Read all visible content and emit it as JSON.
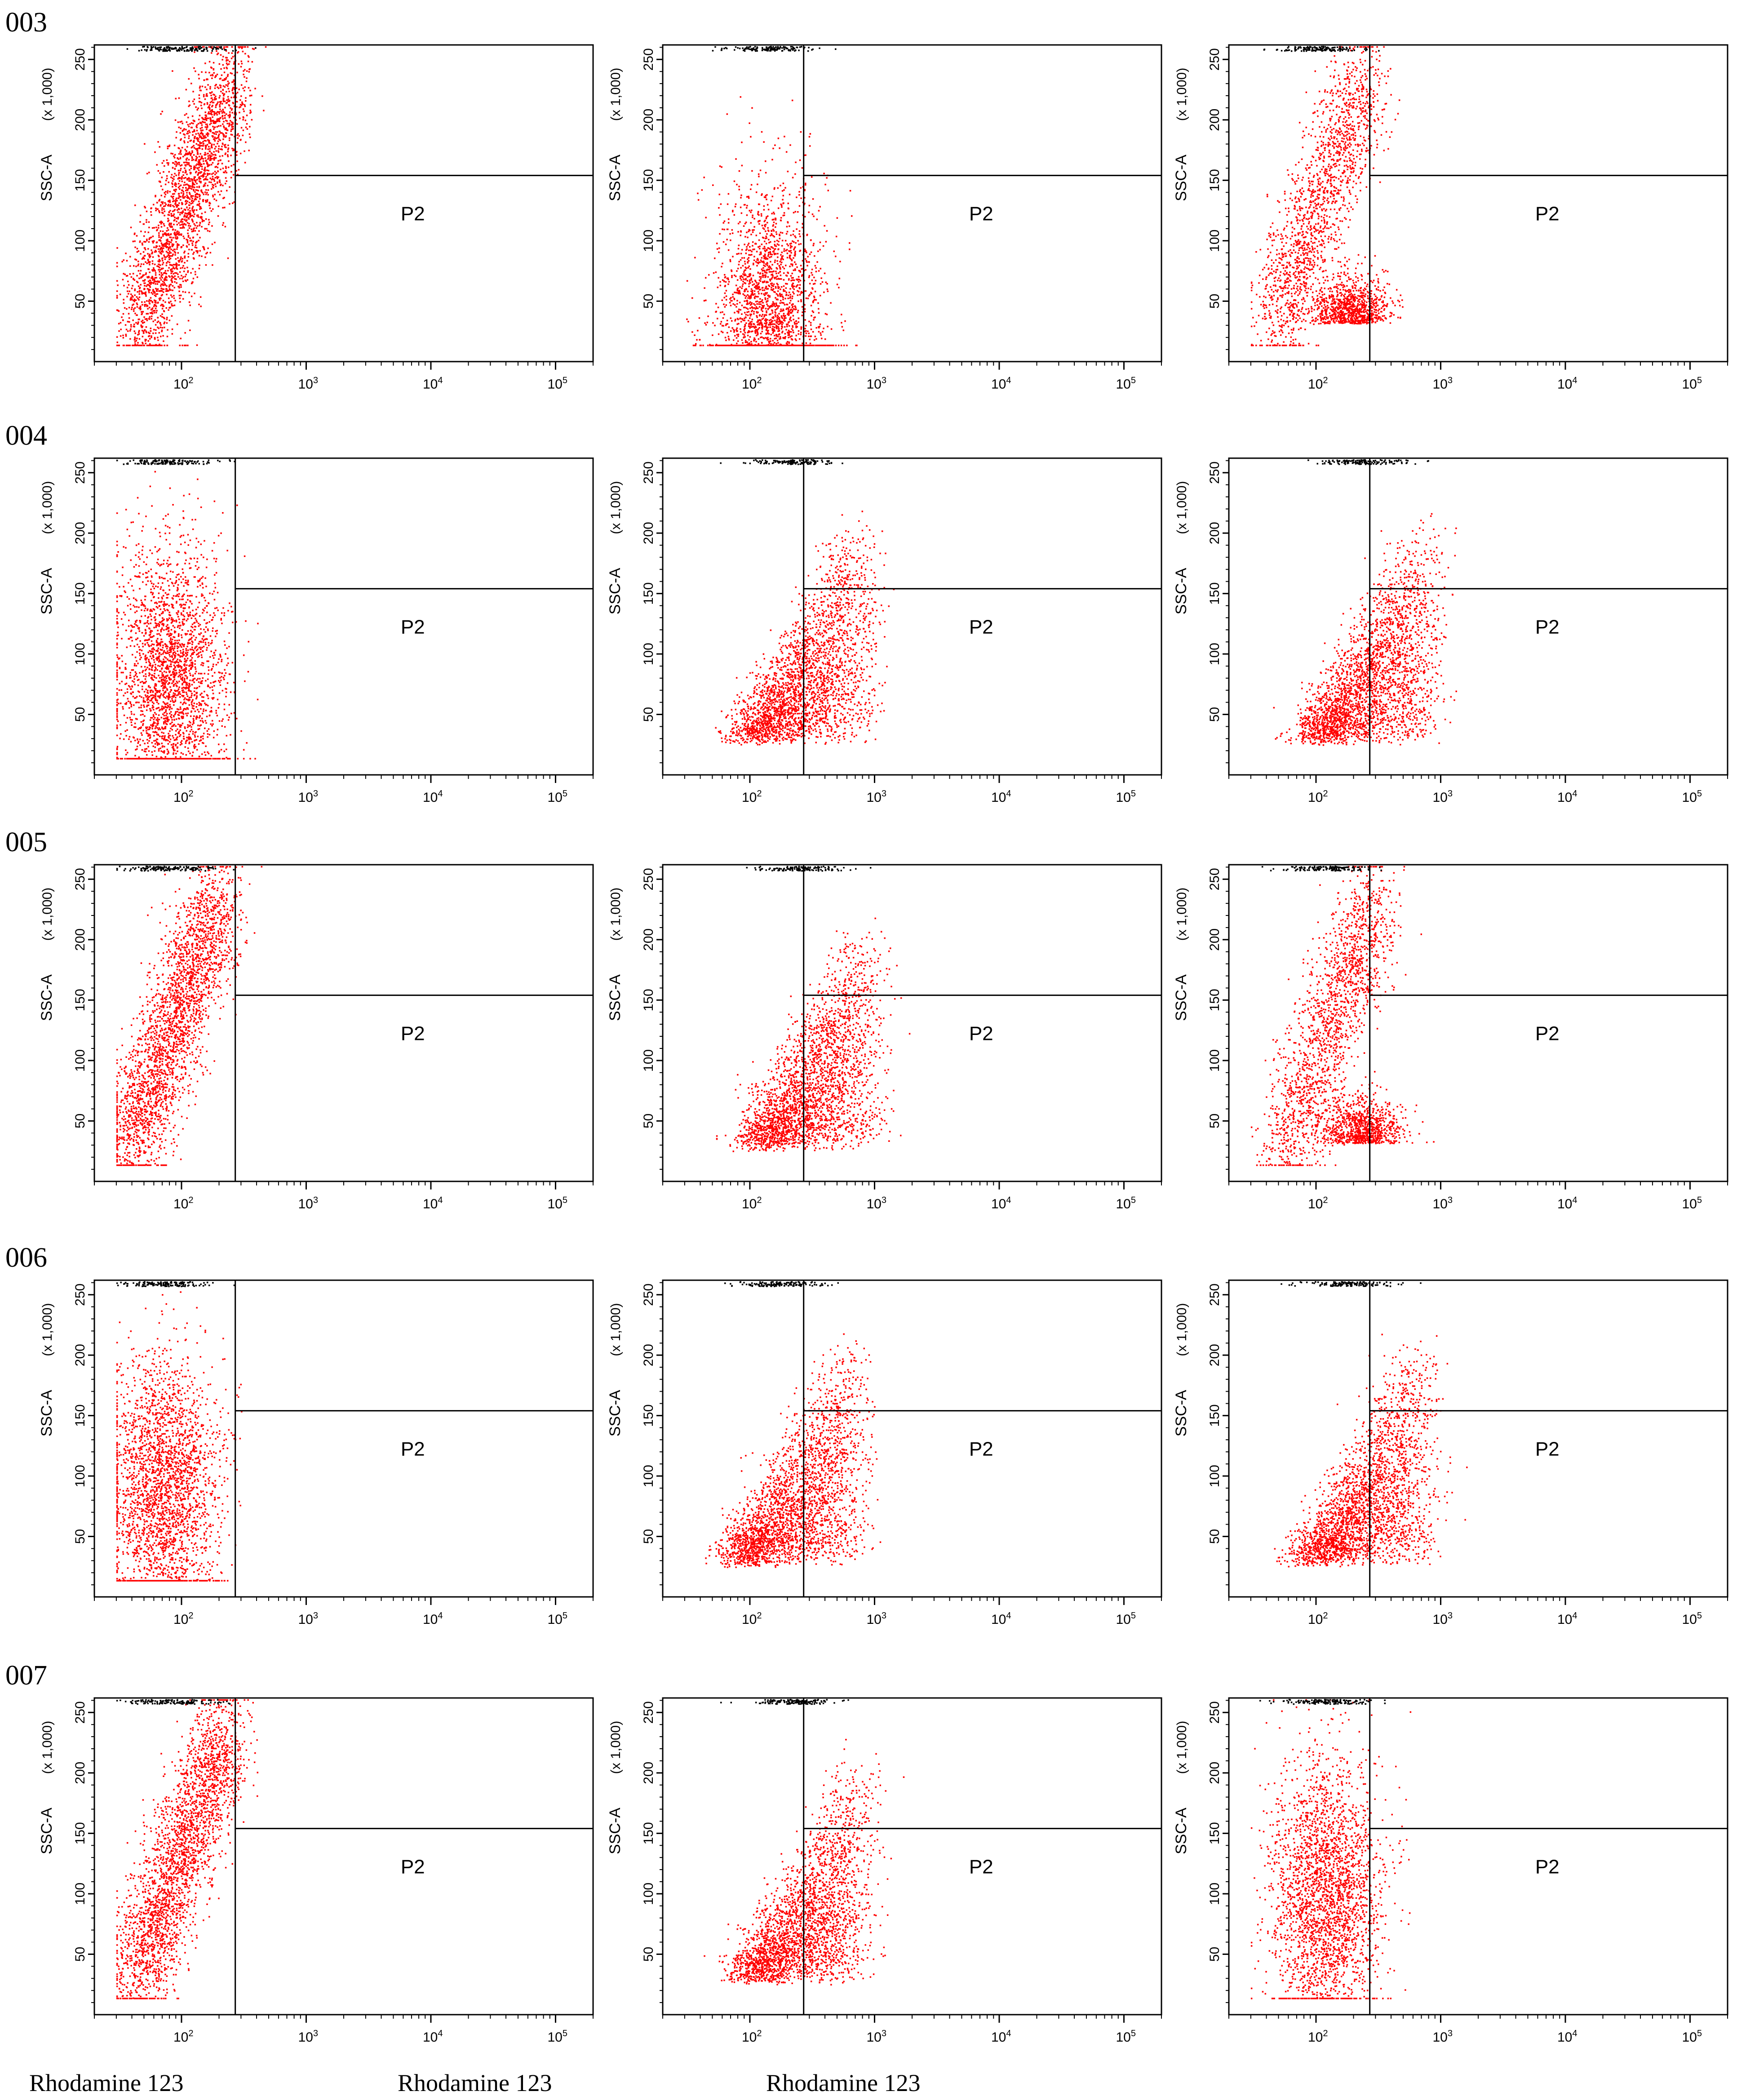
{
  "rows": [
    "003",
    "004",
    "005",
    "006",
    "007"
  ],
  "column_xlabels": [
    "Rhodamine 123",
    "Rhodamine 123",
    "Rhodamine 123"
  ],
  "colors": {
    "events": "#ff0000",
    "saturated_events": "#000000",
    "axes": "#000000",
    "gate": "#000000"
  },
  "chart_data": {
    "type": "scatter",
    "layout": "5x3 grid of flow cytometry dot plots",
    "ylabel": "SSC-A",
    "ylabel_multiplier": "(x 1,000)",
    "y_ticks": [
      50,
      100,
      150,
      200,
      250
    ],
    "ylim": [
      0,
      262
    ],
    "x_scale": "log",
    "x_ticks": [
      "10^2",
      "10^3",
      "10^4",
      "10^5"
    ],
    "xlim": [
      20,
      200000
    ],
    "gate": {
      "name": "P2",
      "x_min": 270,
      "x_max": 262144,
      "y_min": 154,
      "y_max": 262
    },
    "panels": [
      {
        "row": "003",
        "col": 1,
        "population": "single-diagonal",
        "cluster_center": {
          "x": 100,
          "y": 60
        }
      },
      {
        "row": "003",
        "col": 2,
        "population": "vertical-spread",
        "cluster_center": {
          "x": 150,
          "y": 35
        }
      },
      {
        "row": "003",
        "col": 3,
        "population": "two-clusters",
        "cluster_center": {
          "x": 100,
          "y": 110
        }
      },
      {
        "row": "004",
        "col": 1,
        "population": "vertical-spread",
        "cluster_center": {
          "x": 80,
          "y": 80
        }
      },
      {
        "row": "004",
        "col": 2,
        "population": "diagonal-right",
        "cluster_center": {
          "x": 220,
          "y": 40
        }
      },
      {
        "row": "004",
        "col": 3,
        "population": "diagonal-right",
        "cluster_center": {
          "x": 220,
          "y": 40
        }
      },
      {
        "row": "005",
        "col": 1,
        "population": "single-diagonal",
        "cluster_center": {
          "x": 80,
          "y": 90
        }
      },
      {
        "row": "005",
        "col": 2,
        "population": "diagonal-right",
        "cluster_center": {
          "x": 250,
          "y": 40
        }
      },
      {
        "row": "005",
        "col": 3,
        "population": "two-clusters",
        "cluster_center": {
          "x": 120,
          "y": 100
        }
      },
      {
        "row": "006",
        "col": 1,
        "population": "vertical-spread",
        "cluster_center": {
          "x": 70,
          "y": 90
        }
      },
      {
        "row": "006",
        "col": 2,
        "population": "diagonal-right",
        "cluster_center": {
          "x": 180,
          "y": 40
        }
      },
      {
        "row": "006",
        "col": 3,
        "population": "diagonal-right",
        "cluster_center": {
          "x": 200,
          "y": 50
        }
      },
      {
        "row": "007",
        "col": 1,
        "population": "single-diagonal",
        "cluster_center": {
          "x": 90,
          "y": 90
        }
      },
      {
        "row": "007",
        "col": 2,
        "population": "diagonal-right",
        "cluster_center": {
          "x": 220,
          "y": 50
        }
      },
      {
        "row": "007",
        "col": 3,
        "population": "vertical-spread",
        "cluster_center": {
          "x": 120,
          "y": 100
        }
      }
    ]
  }
}
